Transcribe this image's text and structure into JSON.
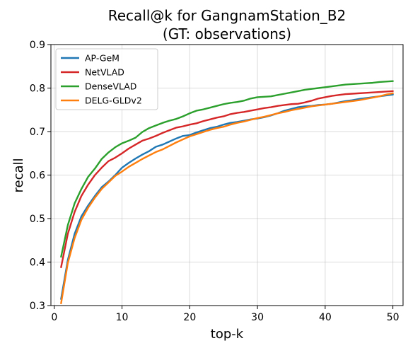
{
  "chart_data": {
    "type": "line",
    "title": [
      "Recall@k for GangnamStation_B2",
      "(GT: observations)"
    ],
    "xlabel": "top-k",
    "ylabel": "recall",
    "xlim": [
      -0.5,
      51.5
    ],
    "ylim": [
      0.3,
      0.9
    ],
    "xticks": [
      0,
      10,
      20,
      30,
      40,
      50
    ],
    "yticks": [
      0.3,
      0.4,
      0.5,
      0.6,
      0.7,
      0.8,
      0.9
    ],
    "grid": true,
    "legend": "top-left",
    "x": [
      1,
      2,
      3,
      4,
      5,
      6,
      7,
      8,
      9,
      10,
      11,
      12,
      13,
      14,
      15,
      16,
      17,
      18,
      19,
      20,
      21,
      22,
      23,
      24,
      25,
      26,
      27,
      28,
      29,
      30,
      31,
      32,
      33,
      34,
      35,
      36,
      37,
      38,
      39,
      40,
      41,
      42,
      43,
      44,
      45,
      46,
      47,
      48,
      49,
      50
    ],
    "series": [
      {
        "name": "AP-GeM",
        "color": "#1f77b4",
        "values": [
          0.315,
          0.405,
          0.465,
          0.505,
          0.53,
          0.552,
          0.572,
          0.585,
          0.6,
          0.617,
          0.628,
          0.638,
          0.647,
          0.655,
          0.665,
          0.67,
          0.677,
          0.684,
          0.69,
          0.692,
          0.698,
          0.703,
          0.708,
          0.711,
          0.716,
          0.72,
          0.722,
          0.725,
          0.728,
          0.73,
          0.733,
          0.737,
          0.742,
          0.748,
          0.752,
          0.756,
          0.758,
          0.759,
          0.761,
          0.762,
          0.764,
          0.767,
          0.77,
          0.772,
          0.775,
          0.777,
          0.779,
          0.781,
          0.783,
          0.785
        ]
      },
      {
        "name": "NetVLAD",
        "color": "#d62728",
        "values": [
          0.388,
          0.465,
          0.515,
          0.552,
          0.578,
          0.6,
          0.617,
          0.632,
          0.64,
          0.65,
          0.661,
          0.67,
          0.679,
          0.684,
          0.69,
          0.697,
          0.703,
          0.709,
          0.712,
          0.716,
          0.719,
          0.724,
          0.728,
          0.732,
          0.735,
          0.74,
          0.743,
          0.745,
          0.748,
          0.751,
          0.754,
          0.756,
          0.759,
          0.761,
          0.763,
          0.764,
          0.767,
          0.771,
          0.776,
          0.779,
          0.782,
          0.784,
          0.786,
          0.787,
          0.788,
          0.789,
          0.79,
          0.791,
          0.792,
          0.793
        ]
      },
      {
        "name": "DenseVLAD",
        "color": "#2ca02c",
        "values": [
          0.412,
          0.485,
          0.535,
          0.568,
          0.596,
          0.615,
          0.637,
          0.652,
          0.664,
          0.673,
          0.679,
          0.686,
          0.699,
          0.708,
          0.714,
          0.72,
          0.725,
          0.729,
          0.735,
          0.742,
          0.748,
          0.751,
          0.755,
          0.759,
          0.763,
          0.766,
          0.768,
          0.771,
          0.776,
          0.779,
          0.78,
          0.781,
          0.784,
          0.787,
          0.79,
          0.793,
          0.796,
          0.798,
          0.8,
          0.802,
          0.804,
          0.806,
          0.808,
          0.809,
          0.81,
          0.811,
          0.812,
          0.814,
          0.815,
          0.816
        ]
      },
      {
        "name": "DELG-GLDv2",
        "color": "#ff7f0e",
        "values": [
          0.305,
          0.398,
          0.455,
          0.497,
          0.525,
          0.548,
          0.568,
          0.583,
          0.598,
          0.608,
          0.619,
          0.628,
          0.637,
          0.645,
          0.653,
          0.659,
          0.667,
          0.675,
          0.682,
          0.689,
          0.694,
          0.699,
          0.704,
          0.708,
          0.711,
          0.716,
          0.72,
          0.723,
          0.727,
          0.731,
          0.734,
          0.738,
          0.742,
          0.745,
          0.749,
          0.752,
          0.755,
          0.758,
          0.76,
          0.762,
          0.764,
          0.766,
          0.768,
          0.77,
          0.772,
          0.775,
          0.778,
          0.781,
          0.785,
          0.788
        ]
      }
    ]
  }
}
